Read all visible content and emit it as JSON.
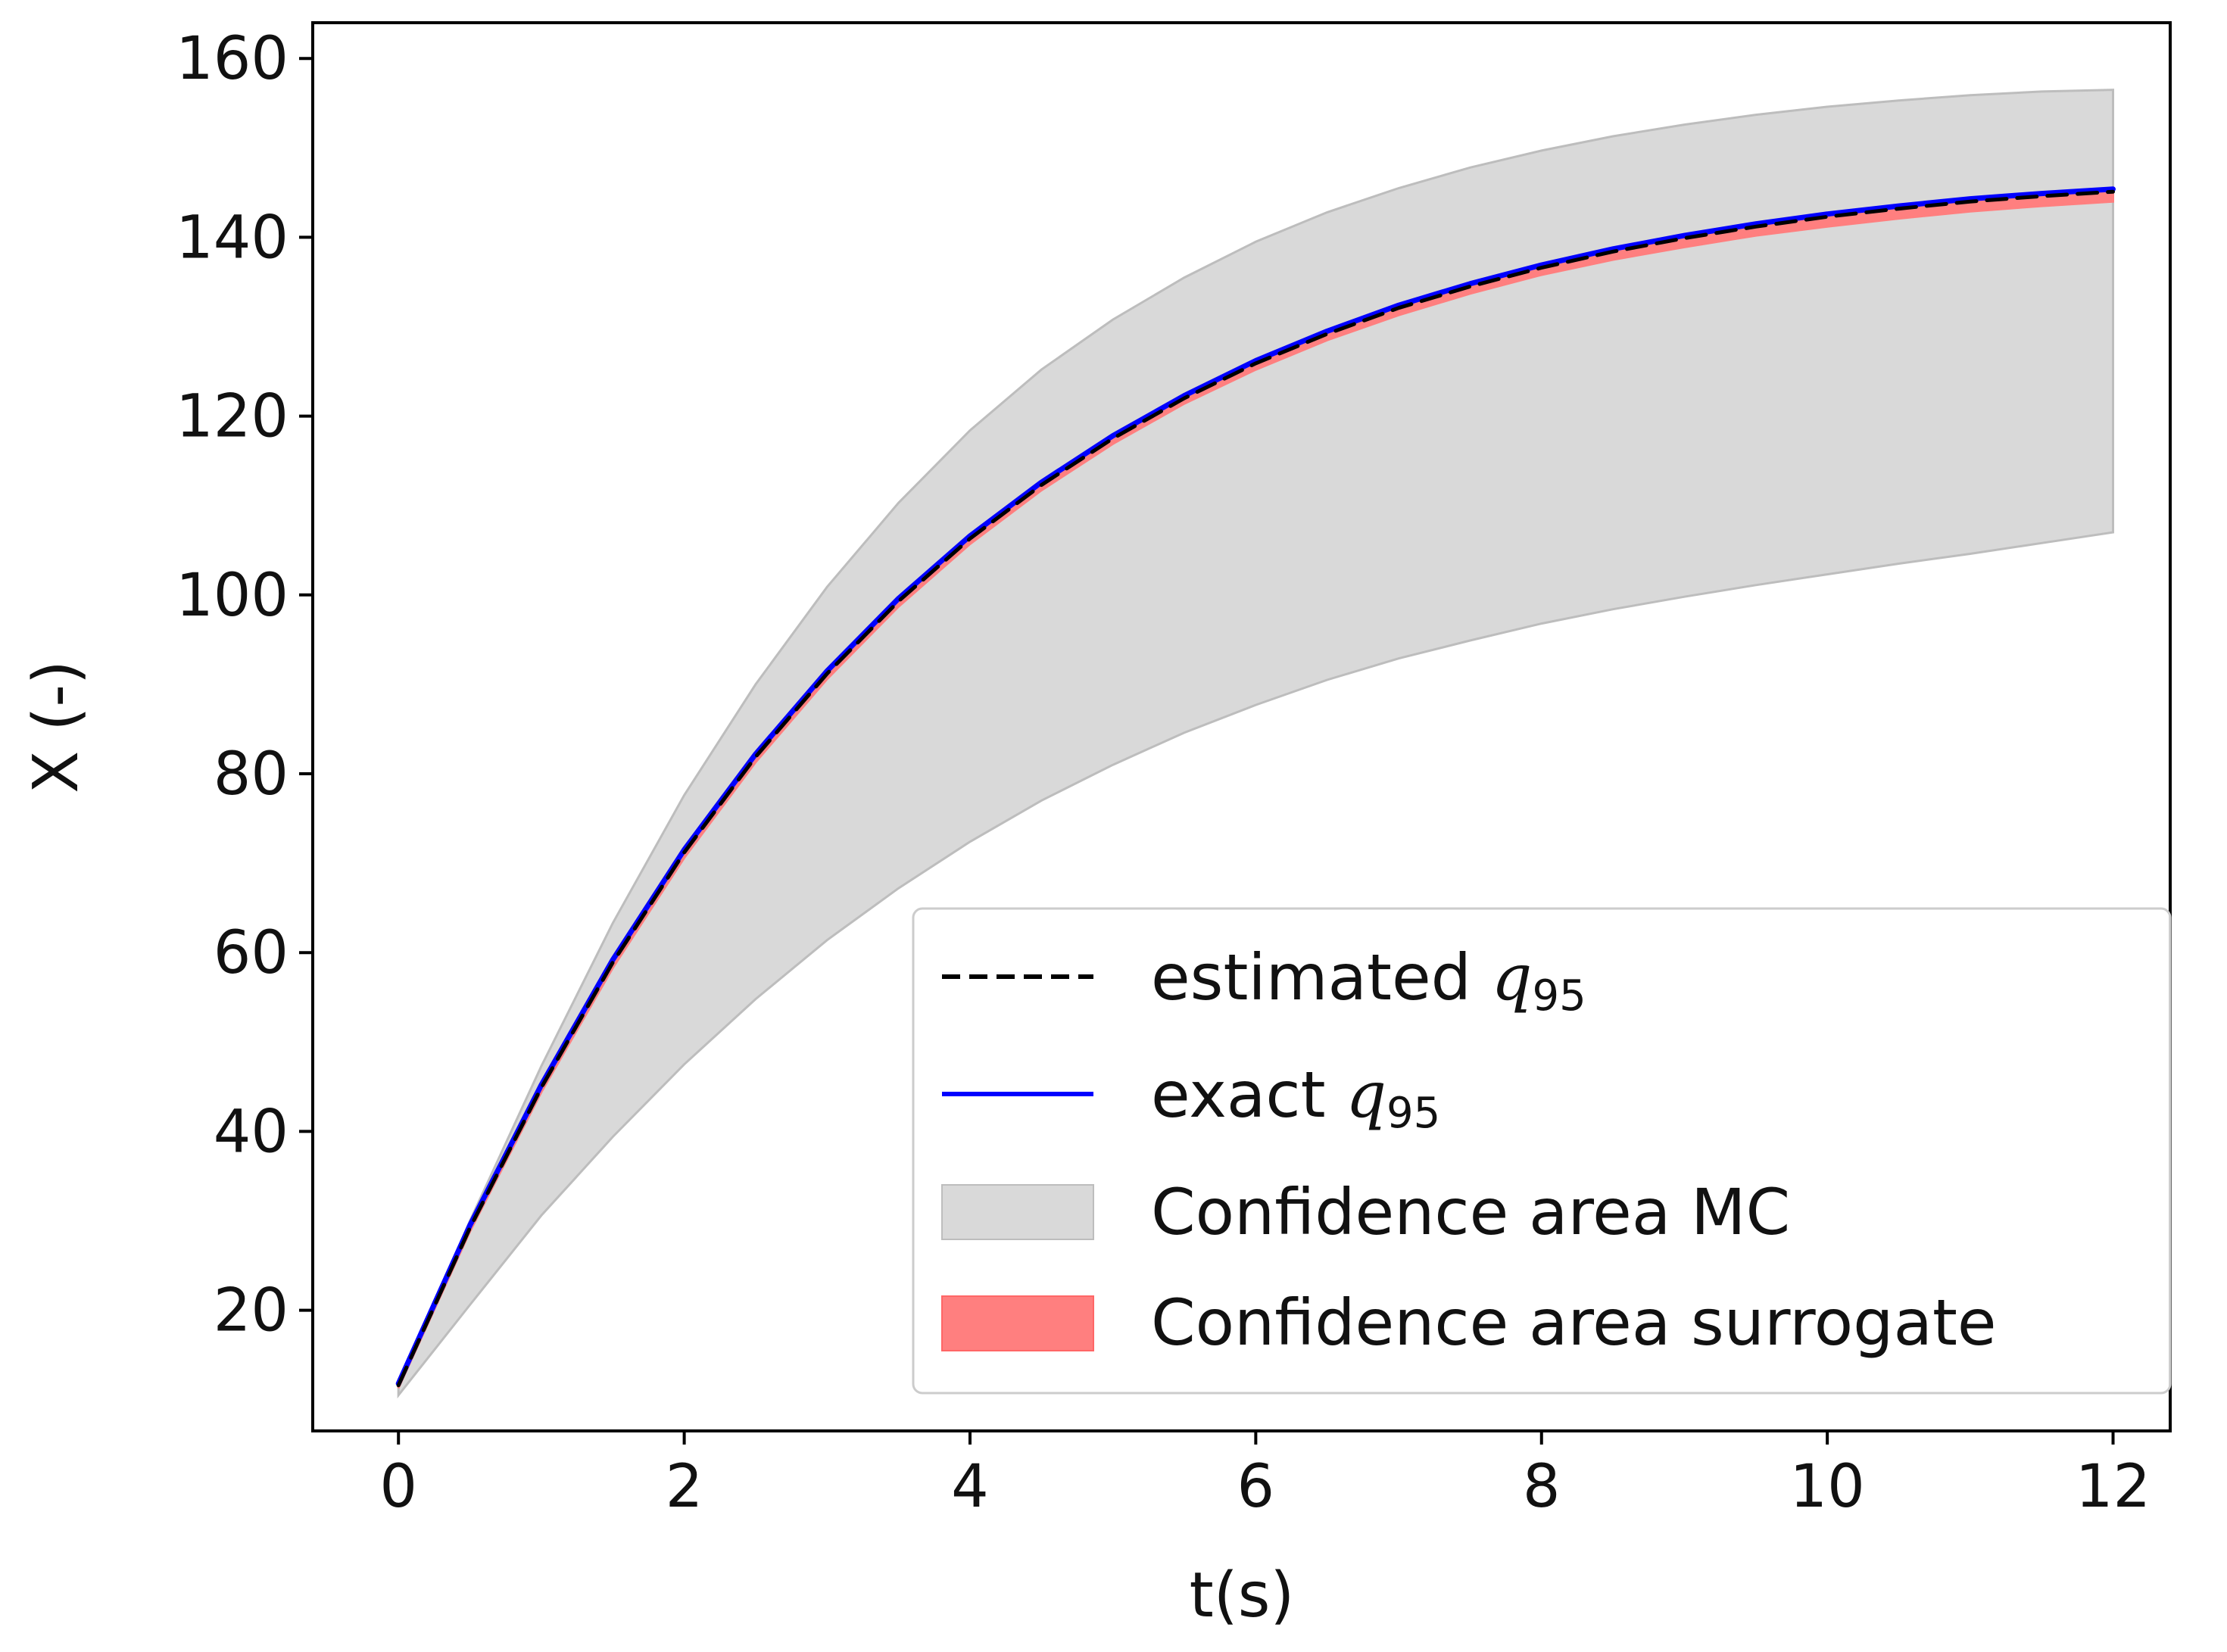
{
  "chart_data": {
    "type": "area",
    "title": "",
    "xlabel": "t(s)",
    "ylabel": "X (-)",
    "xlim": [
      -0.6,
      12.4
    ],
    "ylim": [
      6.5,
      164
    ],
    "xticks": [
      0,
      2,
      4,
      6,
      8,
      10,
      12
    ],
    "yticks": [
      20,
      40,
      60,
      80,
      100,
      120,
      140,
      160
    ],
    "xtick_labels": [
      "0",
      "2",
      "4",
      "6",
      "8",
      "10",
      "12"
    ],
    "ytick_labels": [
      "20",
      "40",
      "60",
      "80",
      "100",
      "120",
      "140",
      "160"
    ],
    "legend_position": "lower-right",
    "x": [
      0,
      0.5,
      1,
      1.5,
      2,
      2.5,
      3,
      3.5,
      4,
      4.5,
      5,
      5.5,
      6,
      6.5,
      7,
      7.5,
      8,
      8.5,
      9,
      9.5,
      10,
      10.5,
      11,
      11.5,
      12
    ],
    "series": [
      {
        "name": "Confidence area MC",
        "kind": "band",
        "color": "#d9d9d9",
        "edge_color": "#bdbdbd",
        "upper": [
          11.5,
          30,
          47.3,
          63.3,
          77.6,
          90,
          100.9,
          110.3,
          118.4,
          125.2,
          130.8,
          135.5,
          139.5,
          142.8,
          145.5,
          147.8,
          149.7,
          151.3,
          152.6,
          153.7,
          154.6,
          155.3,
          155.9,
          156.3,
          156.5
        ],
        "lower": [
          10.5,
          20.6,
          30.6,
          39.4,
          47.5,
          54.8,
          61.4,
          67.2,
          72.4,
          77,
          81,
          84.6,
          87.7,
          90.5,
          92.9,
          94.9,
          96.8,
          98.4,
          99.8,
          101.1,
          102.3,
          103.5,
          104.6,
          105.8,
          107
        ]
      },
      {
        "name": "Confidence area surrogate",
        "kind": "band",
        "color": "#ff7f7f",
        "upper": [
          11.9,
          29.6,
          45.3,
          59.3,
          71.6,
          82.3,
          91.6,
          99.7,
          106.7,
          112.7,
          117.9,
          122.4,
          126.3,
          129.6,
          132.5,
          134.9,
          137,
          138.8,
          140.3,
          141.6,
          142.7,
          143.6,
          144.4,
          145,
          145.5
        ],
        "lower": [
          11.3,
          28.8,
          44.4,
          58.3,
          70.6,
          81.3,
          90.6,
          98.7,
          105.7,
          111.7,
          116.9,
          121.4,
          125.2,
          128.5,
          131.3,
          133.7,
          135.8,
          137.5,
          138.9,
          140.2,
          141.2,
          142.1,
          142.9,
          143.5,
          144
        ]
      },
      {
        "name": "exact q95",
        "label_text": "exact ",
        "label_math": "q",
        "label_sub": "95",
        "kind": "line",
        "style": "solid",
        "color": "#0000ff",
        "values": [
          11.8,
          29.5,
          45.2,
          59.2,
          71.5,
          82.2,
          91.5,
          99.6,
          106.6,
          112.6,
          117.8,
          122.3,
          126.2,
          129.5,
          132.4,
          134.8,
          136.9,
          138.7,
          140.2,
          141.5,
          142.6,
          143.5,
          144.3,
          144.9,
          145.4
        ]
      },
      {
        "name": "estimated q95",
        "label_text": "estimated ",
        "label_math": "q",
        "label_sub": "95",
        "kind": "line",
        "style": "dashed",
        "color": "#000000",
        "values": [
          11.6,
          29.2,
          44.9,
          58.9,
          71.2,
          81.9,
          91.2,
          99.3,
          106.3,
          112.3,
          117.5,
          122,
          125.9,
          129.2,
          132.1,
          134.5,
          136.6,
          138.4,
          139.9,
          141.2,
          142.3,
          143.2,
          144,
          144.6,
          145.1
        ]
      }
    ]
  }
}
